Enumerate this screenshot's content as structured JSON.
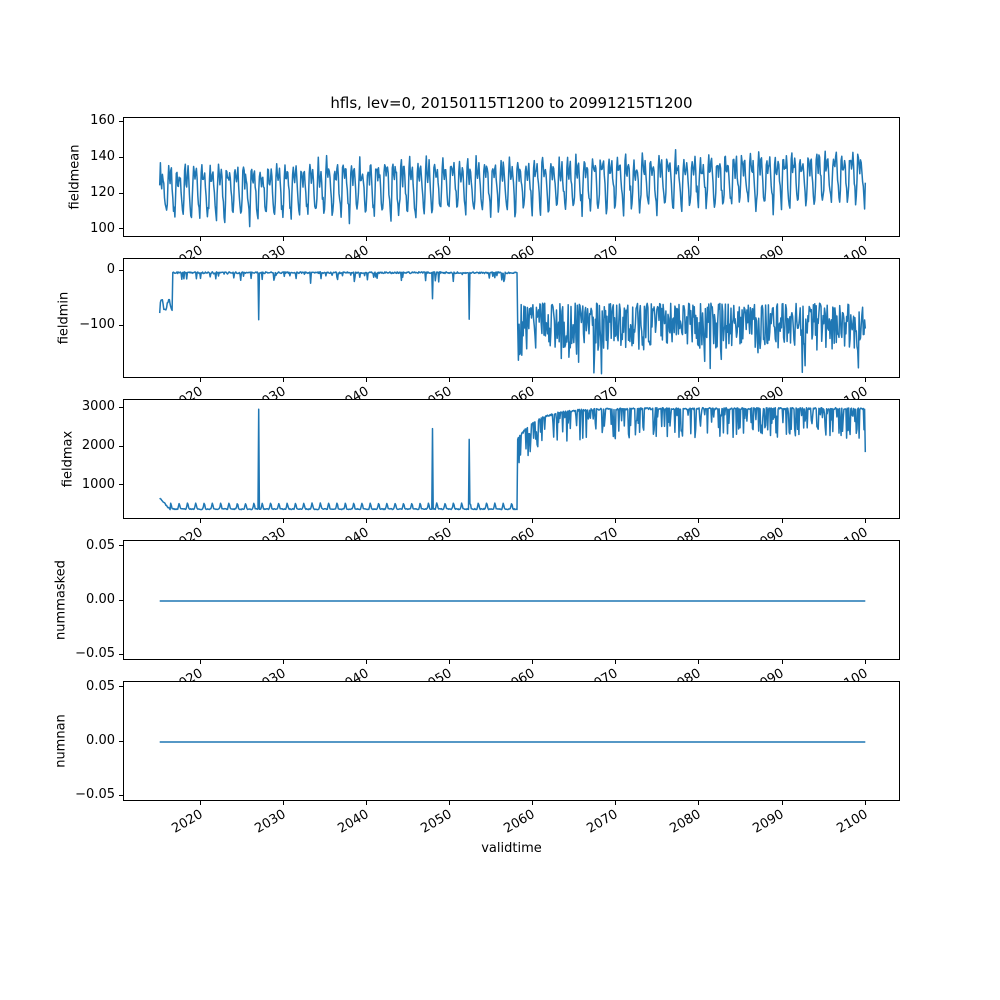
{
  "figure": {
    "title": "hfls, lev=0, 20150115T1200 to 20991215T1200",
    "xlabel": "validtime",
    "line_color": "#1f77b4",
    "background": "#ffffff",
    "xlim": [
      2010.75,
      2104.25
    ],
    "xticks": [
      2020,
      2030,
      2040,
      2050,
      2060,
      2070,
      2080,
      2090,
      2100
    ],
    "xtick_labels": [
      "2020",
      "2030",
      "2040",
      "2050",
      "2060",
      "2070",
      "2080",
      "2090",
      "2100"
    ],
    "time_start": "20150115T1200",
    "time_end": "20991215T1200"
  },
  "chart_data": [
    {
      "type": "line",
      "ylabel": "fieldmean",
      "yticks": [
        160,
        140,
        120,
        100
      ],
      "ytick_labels": [
        "160",
        "140",
        "120",
        "100"
      ],
      "ylim": [
        95.5,
        162.5
      ],
      "pattern": "monthly series 2015-2100, annual oscillation between about 103 and 145 early, drifting up to about 110-158 by 2100",
      "series_spec": {
        "kind": "seasonal",
        "seed": 7,
        "t0": 2015.0417,
        "t1": 2099.9583,
        "n": 1020,
        "base": [
          122,
          131
        ],
        "amp": 16,
        "noise": 3.5
      }
    },
    {
      "type": "line",
      "ylabel": "fieldmin",
      "yticks": [
        0,
        -100
      ],
      "ytick_labels": [
        "0",
        "−100"
      ],
      "ylim": [
        -195,
        21.7
      ],
      "pattern": "starts near -65 until 2016.6, then hugs 0 with occasional downward spikes until 2058, then noisy regime around -100 (about -58 to -150) with dips to about -185",
      "series_spec": {
        "kind": "min_regimes",
        "seed": 11,
        "t0": 2015.0417,
        "t1": 2099.9583,
        "n": 1020,
        "t_rise": 2016.6,
        "t_shift": 2058.1,
        "events": [
          [
            2015.042,
            -76
          ],
          [
            2021.8,
            -14
          ],
          [
            2027.0,
            -88
          ],
          [
            2033.2,
            -22
          ],
          [
            2038.5,
            -19
          ],
          [
            2044.1,
            -17
          ],
          [
            2047.9,
            -50
          ],
          [
            2052.3,
            -87
          ],
          [
            2056.2,
            -16
          ],
          [
            2058.6,
            -152
          ],
          [
            2063.4,
            -158
          ],
          [
            2081.3,
            -176
          ],
          [
            2092.4,
            -183
          ]
        ]
      }
    },
    {
      "type": "line",
      "ylabel": "fieldmax",
      "yticks": [
        3000,
        2000,
        1000
      ],
      "ytick_labels": [
        "3000",
        "2000",
        "1000"
      ],
      "ylim": [
        110,
        3220
      ],
      "pattern": "starts near 690 falling to a baseline around 380-550 with small annual bumps and isolated spikes (2980 in 2027, 2480 in 2048, 2200 in 2052); jumps at 2058 to about 2200 then rises to a plateau near 3000 with frequent dips to 2200-2700; ends dipping to about 1870",
      "series_spec": {
        "kind": "max_regimes",
        "seed": 23,
        "t0": 2015.0417,
        "t1": 2099.9583,
        "n": 1020,
        "t_drop": 2016.3,
        "t_shift": 2058.1,
        "events": [
          [
            2027.0,
            2980
          ],
          [
            2047.9,
            2480
          ],
          [
            2052.3,
            2200
          ],
          [
            2099.8,
            2450
          ],
          [
            2099.96,
            1870
          ]
        ]
      }
    },
    {
      "type": "line",
      "ylabel": "nummasked",
      "yticks": [
        0.05,
        0.0,
        -0.05
      ],
      "ytick_labels": [
        "0.05",
        "0.00",
        "−0.05"
      ],
      "ylim": [
        -0.0555,
        0.0555
      ],
      "pattern": "constant 0 from 2015 to 2100",
      "series_spec": {
        "kind": "constant",
        "value": 0,
        "t0": 2015.0417,
        "t1": 2099.9583,
        "n": 1020
      }
    },
    {
      "type": "line",
      "ylabel": "numnan",
      "yticks": [
        0.05,
        0.0,
        -0.05
      ],
      "ytick_labels": [
        "0.05",
        "0.00",
        "−0.05"
      ],
      "ylim": [
        -0.0555,
        0.0555
      ],
      "pattern": "constant 0 from 2015 to 2100",
      "series_spec": {
        "kind": "constant",
        "value": 0,
        "t0": 2015.0417,
        "t1": 2099.9583,
        "n": 1020
      }
    }
  ]
}
